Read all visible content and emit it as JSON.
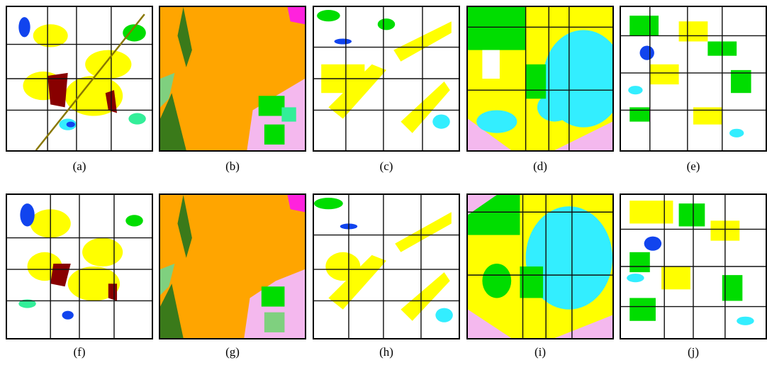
{
  "labels": [
    "(a)",
    "(b)",
    "(c)",
    "(d)",
    "(e)",
    "(f)",
    "(g)",
    "(h)",
    "(i)",
    "(j)"
  ]
}
